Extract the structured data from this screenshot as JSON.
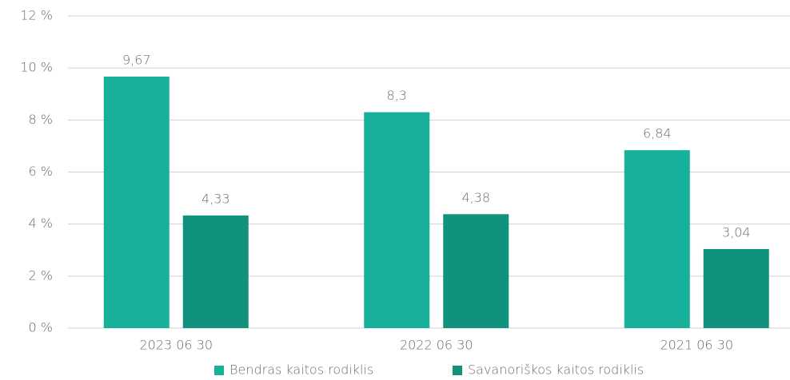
{
  "chart_data": {
    "type": "bar",
    "categories": [
      "2023 06 30",
      "2022 06 30",
      "2021 06 30"
    ],
    "series": [
      {
        "name": "Bendras kaitos rodiklis",
        "color": "#17b19b",
        "values": [
          9.67,
          8.3,
          6.84
        ],
        "value_labels": [
          "9,67",
          "8,3",
          "6,84"
        ]
      },
      {
        "name": "Savanoriškos kaitos rodiklis",
        "color": "#10927c",
        "values": [
          4.33,
          4.38,
          3.04
        ],
        "value_labels": [
          "4,33",
          "4,38",
          "3,04"
        ]
      }
    ],
    "ylim": [
      0,
      12
    ],
    "yticks": [
      {
        "value": 0,
        "label": "0 %"
      },
      {
        "value": 2,
        "label": "2 %"
      },
      {
        "value": 4,
        "label": "4 %"
      },
      {
        "value": 6,
        "label": "6 %"
      },
      {
        "value": 8,
        "label": "8 %"
      },
      {
        "value": 10,
        "label": "10 %"
      },
      {
        "value": 12,
        "label": "12 %"
      }
    ],
    "grid": true,
    "legend": "bottom"
  }
}
